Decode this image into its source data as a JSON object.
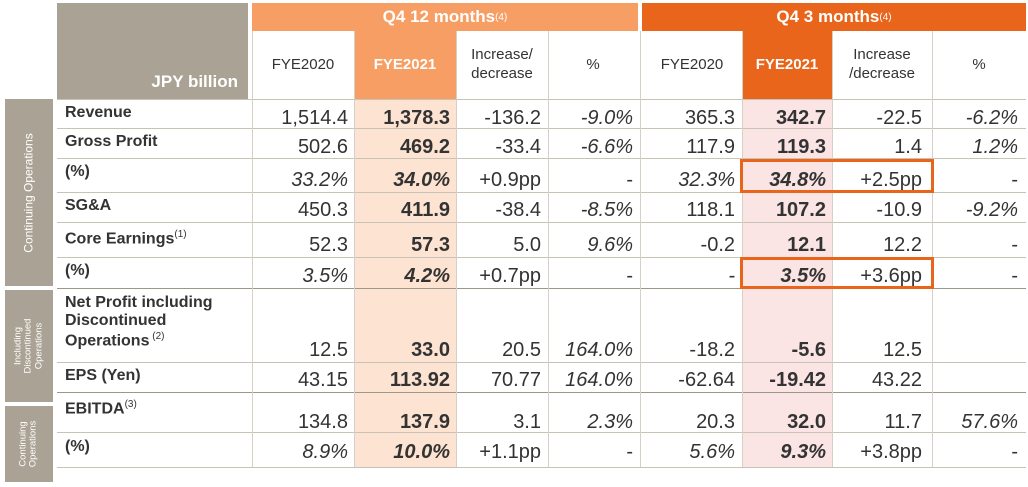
{
  "header": {
    "unit_label": "JPY billion",
    "group_12m": {
      "label": "Q4 12 months",
      "note": "(4)"
    },
    "group_3m": {
      "label": "Q4 3 months",
      "note": "(4)"
    },
    "columns_12m": [
      "FYE2020",
      "FYE2021",
      "Increase/\ndecrease",
      "%"
    ],
    "columns_3m": [
      "FYE2020",
      "FYE2021",
      "Increase\n/decrease",
      "%"
    ]
  },
  "side_labels": {
    "continuing_1": "Continuing Operations",
    "including": "Including\nDiscontinued\nOperations",
    "continuing_2": "Continuing\nOperations"
  },
  "rows": [
    {
      "label": "Revenue",
      "note": "",
      "values": [
        "1,514.4",
        "1,378.3",
        "-136.2",
        "-9.0%",
        "365.3",
        "342.7",
        "-22.5",
        "-6.2%"
      ]
    },
    {
      "label": "Gross Profit",
      "note": "",
      "values": [
        "502.6",
        "469.2",
        "-33.4",
        "-6.6%",
        "117.9",
        "119.3",
        "1.4",
        "1.2%"
      ]
    },
    {
      "label": "(%)",
      "note": "",
      "values": [
        "33.2%",
        "34.0%",
        "+0.9pp",
        "-",
        "32.3%",
        "34.8%",
        "+2.5pp",
        "-"
      ]
    },
    {
      "label": "SG&A",
      "note": "",
      "values": [
        "450.3",
        "411.9",
        "-38.4",
        "-8.5%",
        "118.1",
        "107.2",
        "-10.9",
        "-9.2%"
      ]
    },
    {
      "label": "Core Earnings",
      "note": "(1)",
      "values": [
        "52.3",
        "57.3",
        "5.0",
        "9.6%",
        "-0.2",
        "12.1",
        "12.2",
        "-"
      ]
    },
    {
      "label": "(%)",
      "note": "",
      "values": [
        "3.5%",
        "4.2%",
        "+0.7pp",
        "-",
        "-",
        "3.5%",
        "+3.6pp",
        "-"
      ]
    },
    {
      "label": "Net Profit including\nDiscontinued\nOperations",
      "note": "(2)",
      "values": [
        "12.5",
        "33.0",
        "20.5",
        "164.0%",
        "-18.2",
        "-5.6",
        "12.5",
        ""
      ]
    },
    {
      "label": "EPS (Yen)",
      "note": "",
      "values": [
        "43.15",
        "113.92",
        "70.77",
        "164.0%",
        "-62.64",
        "-19.42",
        "43.22",
        ""
      ]
    },
    {
      "label": "EBITDA",
      "note": "(3)",
      "values": [
        "134.8",
        "137.9",
        "3.1",
        "2.3%",
        "20.3",
        "32.0",
        "11.7",
        "57.6%"
      ]
    },
    {
      "label": "(%)",
      "note": "",
      "values": [
        "8.9%",
        "10.0%",
        "+1.1pp",
        "-",
        "5.6%",
        "9.3%",
        "+3.8pp",
        "-"
      ]
    }
  ],
  "colors": {
    "accent_12m": "#f79e64",
    "accent_3m": "#e8651b",
    "grey_band": "#aaa395"
  }
}
